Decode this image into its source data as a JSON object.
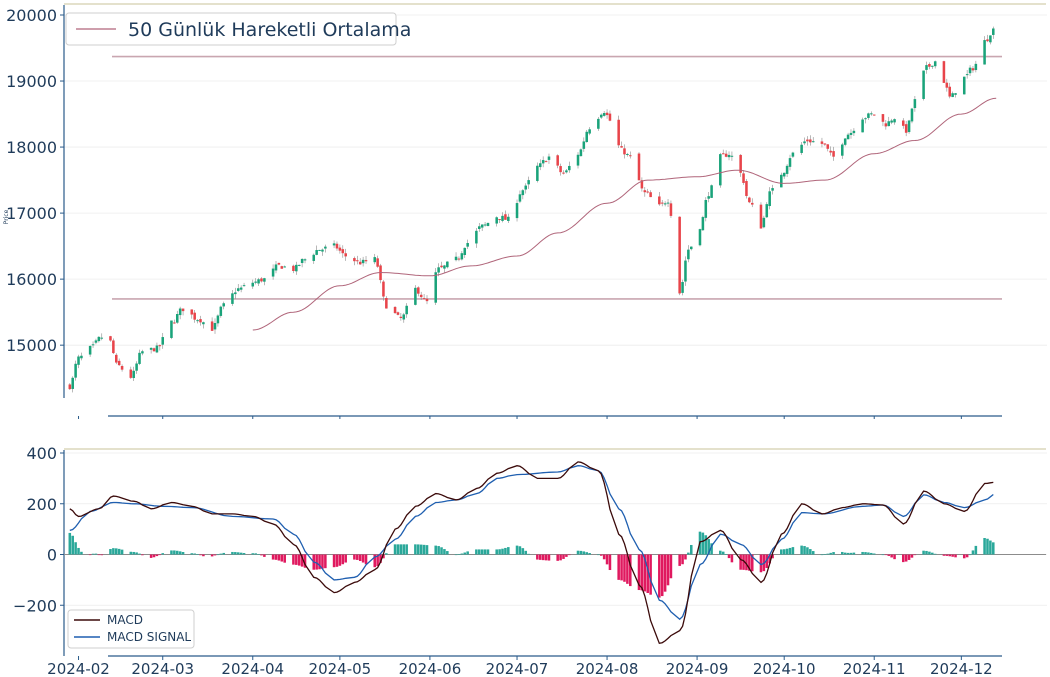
{
  "chart_data": [
    {
      "type": "candlestick",
      "ylabel": "Price",
      "ylim": [
        14200,
        20000
      ],
      "yticks": [
        15000,
        16000,
        17000,
        18000,
        19000,
        20000
      ],
      "hlines": [
        19370,
        15700
      ],
      "legend": {
        "placement": "top-left",
        "entries": [
          "50 Günlük Hareketli Ortalama"
        ]
      },
      "colors": {
        "up": "#1aa37a",
        "down": "#e8444a",
        "ma": "#b0657a",
        "hline": "#c9a6b0",
        "axis": "#2a5a8a"
      },
      "anchors": [
        [
          "2024-01-29",
          14380
        ],
        [
          "2024-02-01",
          14800
        ],
        [
          "2024-02-05",
          14950
        ],
        [
          "2024-02-09",
          15120
        ],
        [
          "2024-02-12",
          15050
        ],
        [
          "2024-02-14",
          14700
        ],
        [
          "2024-02-19",
          14520
        ],
        [
          "2024-02-23",
          14900
        ],
        [
          "2024-02-28",
          14950
        ],
        [
          "2024-03-04",
          15350
        ],
        [
          "2024-03-08",
          15550
        ],
        [
          "2024-03-13",
          15400
        ],
        [
          "2024-03-18",
          15250
        ],
        [
          "2024-03-22",
          15600
        ],
        [
          "2024-03-27",
          15850
        ],
        [
          "2024-04-01",
          15950
        ],
        [
          "2024-04-05",
          16000
        ],
        [
          "2024-04-10",
          16200
        ],
        [
          "2024-04-15",
          16150
        ],
        [
          "2024-04-19",
          16300
        ],
        [
          "2024-04-24",
          16450
        ],
        [
          "2024-04-29",
          16500
        ],
        [
          "2024-05-03",
          16350
        ],
        [
          "2024-05-08",
          16250
        ],
        [
          "2024-05-13",
          16300
        ],
        [
          "2024-05-17",
          15600
        ],
        [
          "2024-05-22",
          15400
        ],
        [
          "2024-05-27",
          15850
        ],
        [
          "2024-05-31",
          15650
        ],
        [
          "2024-06-04",
          16150
        ],
        [
          "2024-06-10",
          16300
        ],
        [
          "2024-06-14",
          16550
        ],
        [
          "2024-06-19",
          16800
        ],
        [
          "2024-06-24",
          16950
        ],
        [
          "2024-06-28",
          16900
        ],
        [
          "2024-07-03",
          17350
        ],
        [
          "2024-07-08",
          17700
        ],
        [
          "2024-07-12",
          17850
        ],
        [
          "2024-07-17",
          17600
        ],
        [
          "2024-07-22",
          17900
        ],
        [
          "2024-07-26",
          18300
        ],
        [
          "2024-07-31",
          18550
        ],
        [
          "2024-08-02",
          18400
        ],
        [
          "2024-08-06",
          17950
        ],
        [
          "2024-08-09",
          17850
        ],
        [
          "2024-08-14",
          17300
        ],
        [
          "2024-08-19",
          17100
        ],
        [
          "2024-08-22",
          17200
        ],
        [
          "2024-08-26",
          15800
        ],
        [
          "2024-08-29",
          16450
        ],
        [
          "2024-09-02",
          16800
        ],
        [
          "2024-09-05",
          17300
        ],
        [
          "2024-09-09",
          17850
        ],
        [
          "2024-09-12",
          17900
        ],
        [
          "2024-09-16",
          17600
        ],
        [
          "2024-09-19",
          17150
        ],
        [
          "2024-09-23",
          16800
        ],
        [
          "2024-09-26",
          17300
        ],
        [
          "2024-09-30",
          17600
        ],
        [
          "2024-10-04",
          17900
        ],
        [
          "2024-10-09",
          18100
        ],
        [
          "2024-10-14",
          18050
        ],
        [
          "2024-10-18",
          17850
        ],
        [
          "2024-10-23",
          18200
        ],
        [
          "2024-10-28",
          18450
        ],
        [
          "2024-11-01",
          18500
        ],
        [
          "2024-11-05",
          18350
        ],
        [
          "2024-11-08",
          18450
        ],
        [
          "2024-11-12",
          18250
        ],
        [
          "2024-11-15",
          18700
        ],
        [
          "2024-11-19",
          19200
        ],
        [
          "2024-11-22",
          19300
        ],
        [
          "2024-11-25",
          19000
        ],
        [
          "2024-11-27",
          18750
        ],
        [
          "2024-12-02",
          19050
        ],
        [
          "2024-12-05",
          19200
        ],
        [
          "2024-12-09",
          19600
        ],
        [
          "2024-12-12",
          19780
        ]
      ],
      "ma_start": "2024-04-01",
      "ma_anchors": [
        [
          "2024-04-01",
          15230
        ],
        [
          "2024-04-15",
          15500
        ],
        [
          "2024-05-01",
          15900
        ],
        [
          "2024-05-15",
          16100
        ],
        [
          "2024-06-01",
          16050
        ],
        [
          "2024-06-15",
          16200
        ],
        [
          "2024-07-01",
          16350
        ],
        [
          "2024-07-15",
          16700
        ],
        [
          "2024-08-01",
          17150
        ],
        [
          "2024-08-15",
          17500
        ],
        [
          "2024-09-01",
          17550
        ],
        [
          "2024-09-15",
          17650
        ],
        [
          "2024-10-01",
          17450
        ],
        [
          "2024-10-15",
          17500
        ],
        [
          "2024-11-01",
          17900
        ],
        [
          "2024-11-15",
          18100
        ],
        [
          "2024-12-01",
          18500
        ],
        [
          "2024-12-13",
          18740
        ]
      ]
    },
    {
      "type": "line+bar",
      "ylim": [
        -400,
        400
      ],
      "yticks": [
        -200,
        0,
        200,
        400
      ],
      "xticks": [
        "2024-02",
        "2024-03",
        "2024-04",
        "2024-05",
        "2024-06",
        "2024-07",
        "2024-08",
        "2024-09",
        "2024-10",
        "2024-11",
        "2024-12"
      ],
      "legend": {
        "placement": "bottom-left",
        "entries": [
          "MACD",
          "MACD SIGNAL"
        ]
      },
      "colors": {
        "macd": "#3b0a0a",
        "signal": "#1f5fb0",
        "pos": "#2aa89a",
        "neg": "#e0195f",
        "zero": "#8c8c8c"
      },
      "macd_anchors": [
        [
          "2024-01-29",
          180
        ],
        [
          "2024-02-01",
          150
        ],
        [
          "2024-02-08",
          180
        ],
        [
          "2024-02-13",
          230
        ],
        [
          "2024-02-20",
          210
        ],
        [
          "2024-02-26",
          180
        ],
        [
          "2024-03-04",
          205
        ],
        [
          "2024-03-11",
          190
        ],
        [
          "2024-03-18",
          160
        ],
        [
          "2024-03-25",
          160
        ],
        [
          "2024-04-01",
          150
        ],
        [
          "2024-04-08",
          120
        ],
        [
          "2024-04-15",
          40
        ],
        [
          "2024-04-22",
          -90
        ],
        [
          "2024-04-29",
          -150
        ],
        [
          "2024-05-06",
          -110
        ],
        [
          "2024-05-13",
          -60
        ],
        [
          "2024-05-20",
          100
        ],
        [
          "2024-05-27",
          190
        ],
        [
          "2024-06-03",
          240
        ],
        [
          "2024-06-10",
          215
        ],
        [
          "2024-06-17",
          260
        ],
        [
          "2024-06-24",
          320
        ],
        [
          "2024-07-01",
          350
        ],
        [
          "2024-07-08",
          300
        ],
        [
          "2024-07-15",
          300
        ],
        [
          "2024-07-22",
          365
        ],
        [
          "2024-07-29",
          330
        ],
        [
          "2024-08-05",
          80
        ],
        [
          "2024-08-12",
          -120
        ],
        [
          "2024-08-19",
          -350
        ],
        [
          "2024-08-26",
          -300
        ],
        [
          "2024-09-02",
          50
        ],
        [
          "2024-09-09",
          95
        ],
        [
          "2024-09-16",
          -20
        ],
        [
          "2024-09-23",
          -110
        ],
        [
          "2024-09-30",
          80
        ],
        [
          "2024-10-07",
          200
        ],
        [
          "2024-10-14",
          160
        ],
        [
          "2024-10-21",
          185
        ],
        [
          "2024-10-28",
          200
        ],
        [
          "2024-11-04",
          195
        ],
        [
          "2024-11-11",
          120
        ],
        [
          "2024-11-18",
          250
        ],
        [
          "2024-11-25",
          200
        ],
        [
          "2024-12-02",
          170
        ],
        [
          "2024-12-09",
          280
        ],
        [
          "2024-12-13",
          285
        ]
      ],
      "signal_anchors": [
        [
          "2024-01-29",
          95
        ],
        [
          "2024-02-05",
          170
        ],
        [
          "2024-02-13",
          205
        ],
        [
          "2024-02-20",
          200
        ],
        [
          "2024-03-01",
          190
        ],
        [
          "2024-03-11",
          185
        ],
        [
          "2024-03-25",
          150
        ],
        [
          "2024-04-08",
          140
        ],
        [
          "2024-04-15",
          80
        ],
        [
          "2024-04-22",
          -30
        ],
        [
          "2024-04-29",
          -100
        ],
        [
          "2024-05-06",
          -90
        ],
        [
          "2024-05-13",
          -10
        ],
        [
          "2024-05-20",
          60
        ],
        [
          "2024-05-27",
          150
        ],
        [
          "2024-06-03",
          205
        ],
        [
          "2024-06-10",
          215
        ],
        [
          "2024-06-17",
          240
        ],
        [
          "2024-06-24",
          300
        ],
        [
          "2024-07-01",
          315
        ],
        [
          "2024-07-15",
          325
        ],
        [
          "2024-07-22",
          350
        ],
        [
          "2024-07-29",
          330
        ],
        [
          "2024-08-05",
          180
        ],
        [
          "2024-08-12",
          20
        ],
        [
          "2024-08-19",
          -180
        ],
        [
          "2024-08-26",
          -255
        ],
        [
          "2024-09-02",
          -40
        ],
        [
          "2024-09-09",
          80
        ],
        [
          "2024-09-16",
          40
        ],
        [
          "2024-09-23",
          -40
        ],
        [
          "2024-09-30",
          60
        ],
        [
          "2024-10-07",
          165
        ],
        [
          "2024-10-14",
          160
        ],
        [
          "2024-10-28",
          190
        ],
        [
          "2024-11-04",
          195
        ],
        [
          "2024-11-11",
          150
        ],
        [
          "2024-11-18",
          235
        ],
        [
          "2024-11-25",
          205
        ],
        [
          "2024-12-02",
          185
        ],
        [
          "2024-12-09",
          215
        ],
        [
          "2024-12-13",
          240
        ]
      ]
    }
  ]
}
